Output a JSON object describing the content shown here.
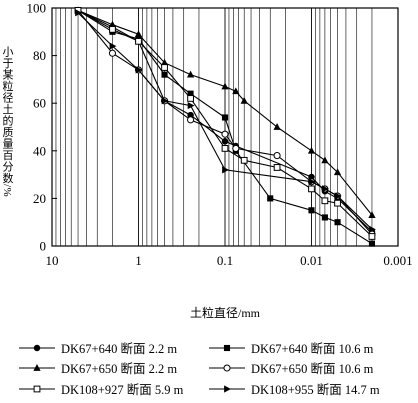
{
  "chart_data": {
    "type": "line",
    "title": "",
    "xlabel": "土粒直径/mm",
    "ylabel": "小于某粒径土的质量百分数/%",
    "x_scale": "log",
    "x_reversed": true,
    "xlim": [
      10,
      0.001
    ],
    "ylim": [
      0,
      100
    ],
    "x_ticks": [
      10,
      1,
      0.1,
      0.01,
      0.001
    ],
    "x_tick_labels": [
      "10",
      "1",
      "0.1",
      "0.01",
      "0.001"
    ],
    "y_ticks": [
      0,
      20,
      40,
      60,
      80,
      100
    ],
    "y_tick_labels": [
      "0",
      "20",
      "40",
      "60",
      "80",
      "100"
    ],
    "grid": "vertical-log",
    "legend_position": "bottom",
    "series": [
      {
        "name": "DK67+640 断面 2.2 m",
        "marker": "filled-circle",
        "x": [
          5,
          2,
          1,
          0.5,
          0.25,
          0.1,
          0.075,
          0.01,
          0.007,
          0.005,
          0.002
        ],
        "y": [
          99,
          92,
          86,
          61,
          55,
          44,
          42,
          29,
          23,
          20,
          6
        ]
      },
      {
        "name": "DK67+640 断面 10.6 m",
        "marker": "filled-square",
        "x": [
          5,
          2,
          1,
          0.5,
          0.25,
          0.1,
          0.075,
          0.03,
          0.01,
          0.007,
          0.005,
          0.002
        ],
        "y": [
          99,
          90,
          87,
          72,
          64,
          54,
          40,
          20,
          15,
          12,
          10,
          1
        ]
      },
      {
        "name": "DK67+650 断面 2.2 m",
        "marker": "filled-triangle",
        "x": [
          5,
          2,
          1,
          0.5,
          0.25,
          0.1,
          0.075,
          0.06,
          0.025,
          0.01,
          0.007,
          0.005,
          0.002
        ],
        "y": [
          99,
          93,
          89,
          77,
          72,
          67,
          65,
          61,
          50,
          40,
          36,
          31,
          13
        ]
      },
      {
        "name": "DK67+650 断面 10.6 m",
        "marker": "open-circle",
        "x": [
          5,
          2,
          1,
          0.5,
          0.25,
          0.1,
          0.075,
          0.025,
          0.01,
          0.007,
          0.005,
          0.002
        ],
        "y": [
          99,
          81,
          74,
          61,
          53,
          47,
          41,
          38,
          27,
          24,
          21,
          5
        ]
      },
      {
        "name": "DK108+927 断面 5.9 m",
        "marker": "open-square",
        "x": [
          5,
          2,
          1,
          0.5,
          0.25,
          0.1,
          0.06,
          0.025,
          0.01,
          0.007,
          0.005,
          0.002
        ],
        "y": [
          99,
          91,
          86,
          75,
          62,
          41,
          36,
          33,
          24,
          19,
          18,
          4
        ]
      },
      {
        "name": "DK108+955 断面 14.7 m",
        "marker": "filled-right-triangle",
        "x": [
          5,
          2,
          1,
          0.5,
          0.25,
          0.1,
          0.01,
          0.007,
          0.005,
          0.002
        ],
        "y": [
          98,
          84,
          74,
          61,
          59,
          32,
          27,
          24,
          21,
          7
        ]
      }
    ]
  }
}
